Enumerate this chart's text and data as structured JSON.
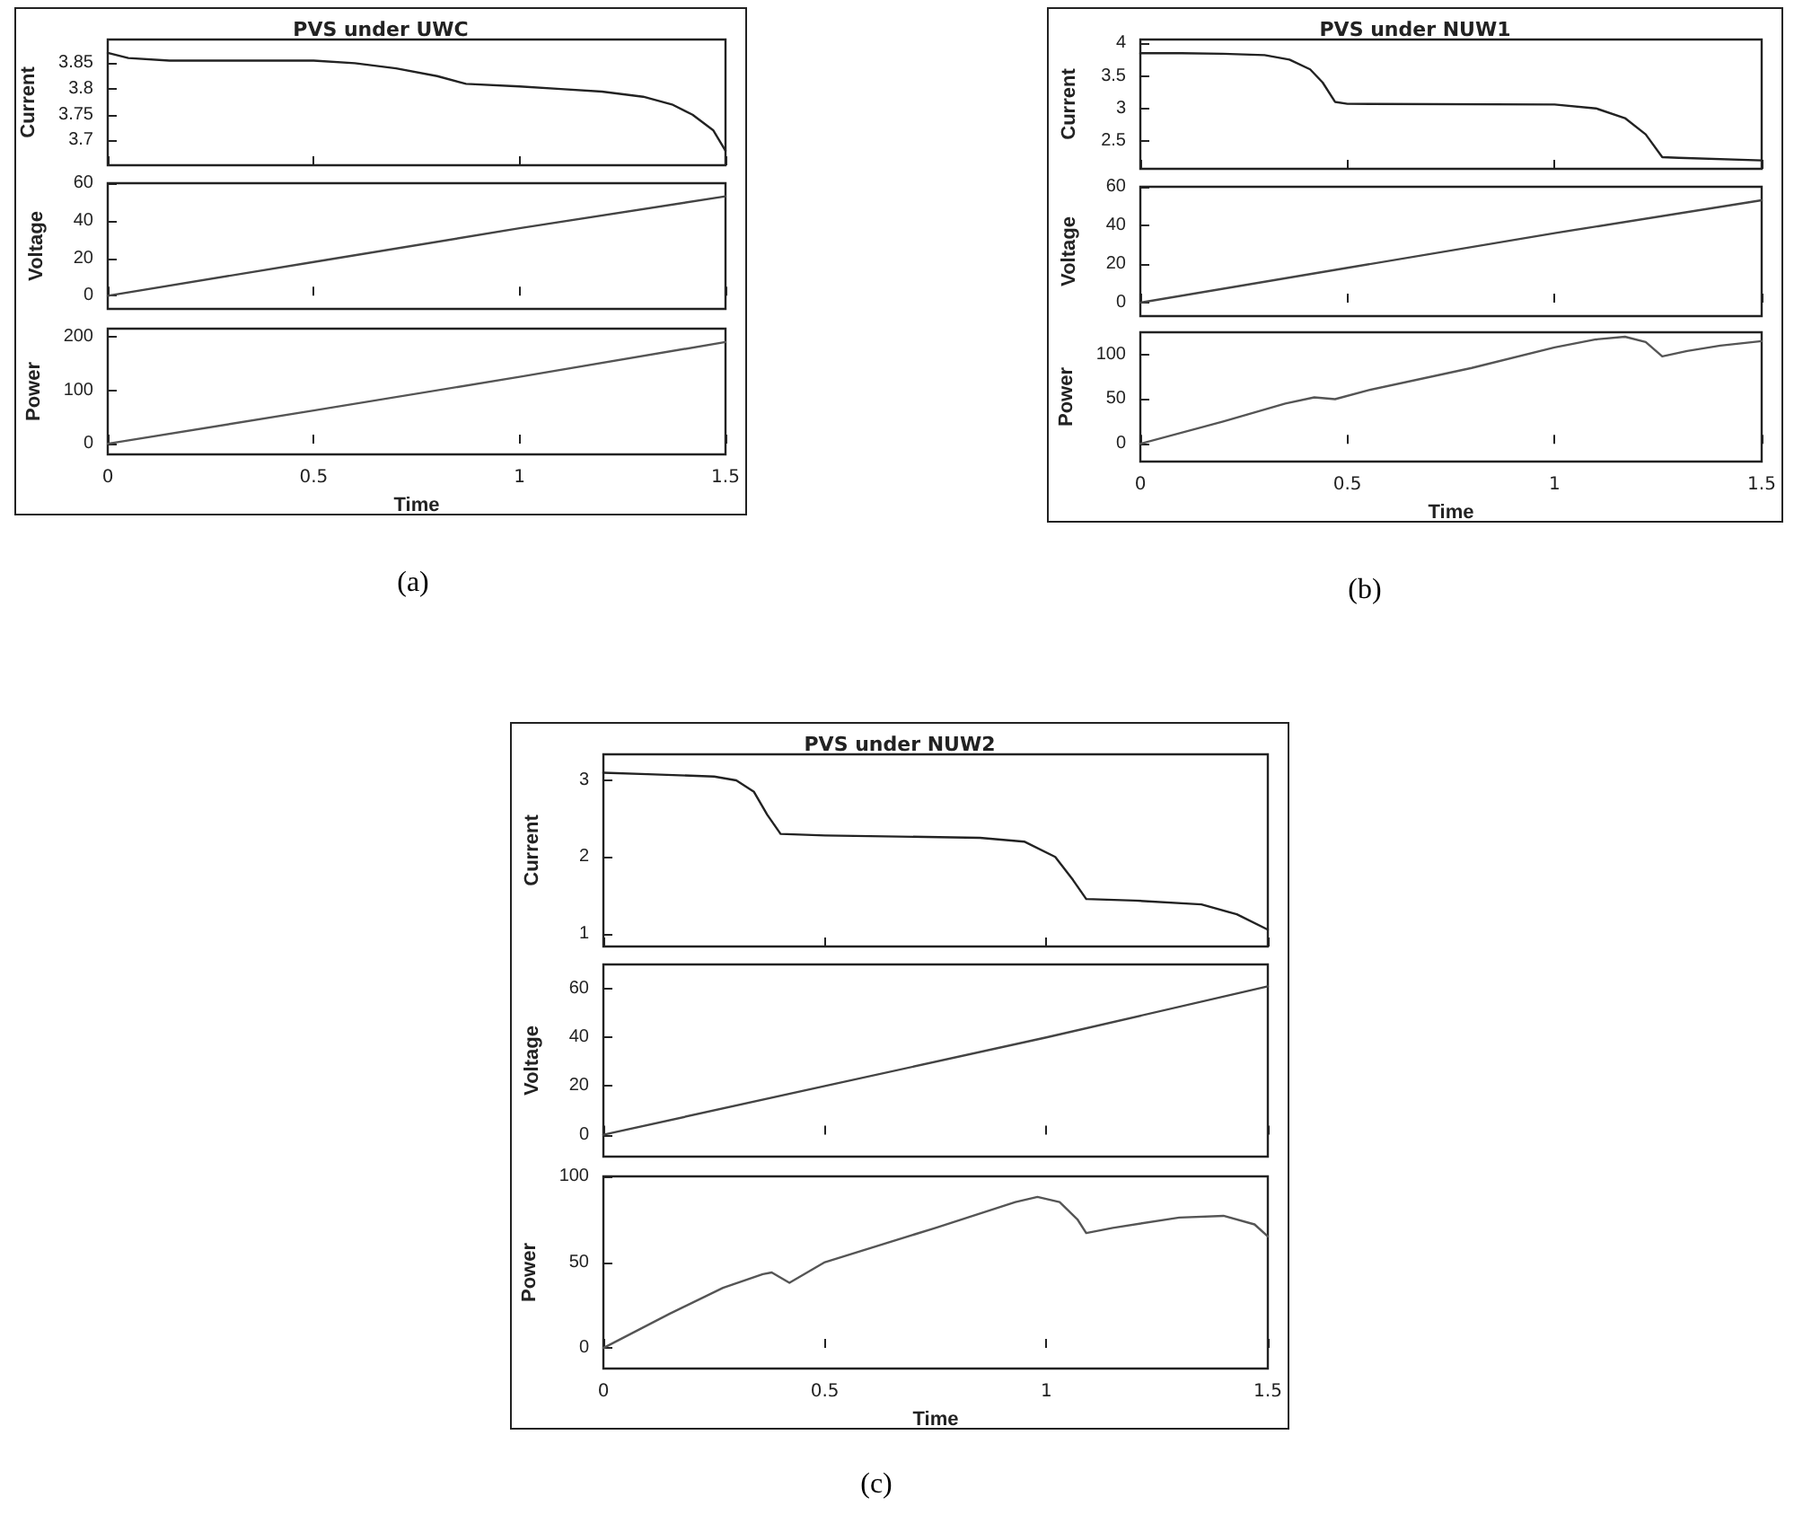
{
  "chart_data": [
    {
      "type": "line",
      "title": "PVS under UWC",
      "ylabel": "Current",
      "color": "#222222",
      "xlim": [
        0,
        1.5
      ],
      "xticks": [
        0,
        0.5,
        1,
        1.5
      ],
      "ylim": [
        3.652,
        3.896
      ],
      "yticks": [
        3.7,
        3.75,
        3.8,
        3.85
      ],
      "tick_labels": "y",
      "x": [
        0,
        0.05,
        0.15,
        0.3,
        0.5,
        0.6,
        0.7,
        0.8,
        0.87,
        1.0,
        1.1,
        1.2,
        1.3,
        1.37,
        1.42,
        1.47,
        1.5
      ],
      "values": [
        3.87,
        3.86,
        3.855,
        3.855,
        3.855,
        3.85,
        3.84,
        3.825,
        3.81,
        3.805,
        3.8,
        3.795,
        3.785,
        3.77,
        3.75,
        3.72,
        3.68
      ]
    },
    {
      "type": "line",
      "ylabel": "Voltage",
      "color": "#444444",
      "xlim": [
        0,
        1.5
      ],
      "xticks": [
        0,
        0.5,
        1,
        1.5
      ],
      "ylim": [
        -7,
        60
      ],
      "yticks": [
        0,
        20,
        40,
        60
      ],
      "tick_labels": "y",
      "x": [
        0,
        0.5,
        1,
        1.5
      ],
      "values": [
        0,
        18,
        36,
        53
      ]
    },
    {
      "type": "line",
      "ylabel": "Power",
      "xlabel": "Time",
      "color": "#555555",
      "xlim": [
        0,
        1.5
      ],
      "xticks": [
        0,
        0.5,
        1,
        1.5
      ],
      "ylim": [
        -20,
        215
      ],
      "yticks": [
        0,
        100,
        200
      ],
      "x": [
        0,
        0.5,
        1,
        1.5
      ],
      "values": [
        0,
        62,
        125,
        190
      ],
      "annotations": [
        "(a)"
      ]
    },
    {
      "type": "line",
      "title": "PVS under NUW1",
      "ylabel": "Current",
      "color": "#222222",
      "xlim": [
        0,
        1.5
      ],
      "xticks": [
        0,
        0.5,
        1,
        1.5
      ],
      "ylim": [
        2.07,
        4.06
      ],
      "yticks": [
        2.5,
        3,
        3.5,
        4
      ],
      "tick_labels": "y",
      "x": [
        0,
        0.1,
        0.2,
        0.3,
        0.36,
        0.41,
        0.44,
        0.47,
        0.5,
        1.0,
        1.1,
        1.17,
        1.22,
        1.26,
        1.3,
        1.5
      ],
      "values": [
        3.85,
        3.85,
        3.84,
        3.82,
        3.75,
        3.6,
        3.4,
        3.1,
        3.07,
        3.06,
        3.0,
        2.85,
        2.6,
        2.25,
        2.24,
        2.2
      ]
    },
    {
      "type": "line",
      "ylabel": "Voltage",
      "color": "#444444",
      "xlim": [
        0,
        1.5
      ],
      "xticks": [
        0,
        0.5,
        1,
        1.5
      ],
      "ylim": [
        -7,
        60
      ],
      "yticks": [
        0,
        20,
        40,
        60
      ],
      "tick_labels": "y",
      "x": [
        0,
        0.5,
        1,
        1.5
      ],
      "values": [
        0,
        18,
        36,
        53
      ]
    },
    {
      "type": "line",
      "ylabel": "Power",
      "xlabel": "Time",
      "color": "#555555",
      "xlim": [
        0,
        1.5
      ],
      "xticks": [
        0,
        0.5,
        1,
        1.5
      ],
      "ylim": [
        -20,
        125
      ],
      "yticks": [
        0,
        50,
        100
      ],
      "x": [
        0,
        0.2,
        0.35,
        0.42,
        0.47,
        0.55,
        0.8,
        1.0,
        1.1,
        1.17,
        1.22,
        1.26,
        1.32,
        1.4,
        1.5
      ],
      "values": [
        0,
        25,
        45,
        52,
        50,
        60,
        85,
        108,
        117,
        120,
        114,
        98,
        104,
        110,
        115
      ],
      "annotations": [
        "(b)"
      ]
    },
    {
      "type": "line",
      "title": "PVS under NUW2",
      "ylabel": "Current",
      "color": "#222222",
      "xlim": [
        0,
        1.5
      ],
      "xticks": [
        0,
        0.5,
        1,
        1.5
      ],
      "ylim": [
        0.83,
        3.34
      ],
      "yticks": [
        1,
        2,
        3
      ],
      "tick_labels": "y",
      "x": [
        0,
        0.1,
        0.25,
        0.3,
        0.34,
        0.37,
        0.4,
        0.5,
        0.85,
        0.95,
        1.02,
        1.06,
        1.09,
        1.2,
        1.35,
        1.43,
        1.5
      ],
      "values": [
        3.1,
        3.08,
        3.05,
        3.0,
        2.85,
        2.55,
        2.3,
        2.28,
        2.25,
        2.2,
        2.0,
        1.7,
        1.45,
        1.43,
        1.38,
        1.25,
        1.05
      ]
    },
    {
      "type": "line",
      "ylabel": "Voltage",
      "color": "#444444",
      "xlim": [
        0,
        1.5
      ],
      "xticks": [
        0,
        0.5,
        1,
        1.5
      ],
      "ylim": [
        -9,
        70
      ],
      "yticks": [
        0,
        20,
        40,
        60
      ],
      "tick_labels": "y",
      "x": [
        0,
        0.5,
        1,
        1.5
      ],
      "values": [
        0,
        20,
        40,
        61
      ]
    },
    {
      "type": "line",
      "ylabel": "Power",
      "xlabel": "Time",
      "color": "#555555",
      "xlim": [
        0,
        1.5
      ],
      "xticks": [
        0,
        0.5,
        1,
        1.5
      ],
      "ylim": [
        -12,
        100
      ],
      "yticks": [
        0,
        50,
        100
      ],
      "x": [
        0,
        0.15,
        0.27,
        0.36,
        0.38,
        0.42,
        0.5,
        0.75,
        0.93,
        0.98,
        1.03,
        1.07,
        1.09,
        1.15,
        1.3,
        1.4,
        1.47,
        1.5
      ],
      "values": [
        0,
        20,
        35,
        43,
        44,
        38,
        50,
        70,
        85,
        88,
        85,
        75,
        67,
        70,
        76,
        77,
        72,
        65
      ],
      "annotations": [
        "(c)"
      ]
    }
  ]
}
